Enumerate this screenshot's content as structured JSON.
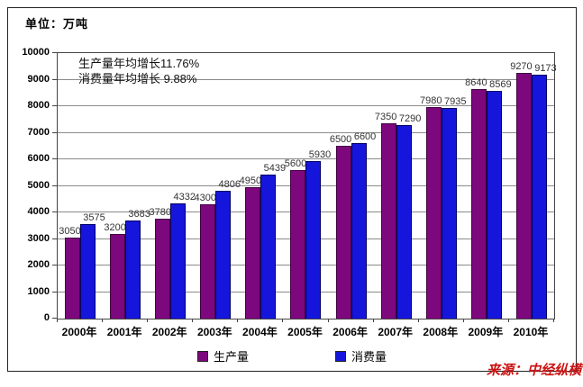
{
  "page": {
    "unit_label": "单位：万吨",
    "source_label": "来源：中经纵横",
    "source_color": "#cc1414"
  },
  "annotation": {
    "line1": "生产量年均增长11.76%",
    "line2": "消费量年均增长 9.88%"
  },
  "chart_data": {
    "type": "bar",
    "title": "",
    "unit": "万吨",
    "categories": [
      "2000年",
      "2001年",
      "2002年",
      "2003年",
      "2004年",
      "2005年",
      "2006年",
      "2007年",
      "2008年",
      "2009年",
      "2010年"
    ],
    "series": [
      {
        "name": "生产量",
        "color": "#7d077d",
        "border_color": "#3f003f",
        "values": [
          3050,
          3200,
          3780,
          4300,
          4950,
          5600,
          6500,
          7350,
          7980,
          8640,
          9270
        ]
      },
      {
        "name": "消费量",
        "color": "#1515dc",
        "border_color": "#000060",
        "values": [
          3575,
          3683,
          4332,
          4806,
          5439,
          5930,
          6600,
          7290,
          7935,
          8569,
          9173
        ]
      }
    ],
    "ylim": [
      0,
      10000
    ],
    "ytick_step": 1000,
    "yticks": [
      0,
      1000,
      2000,
      3000,
      4000,
      5000,
      6000,
      7000,
      8000,
      9000,
      10000
    ],
    "grid": true,
    "data_labels": true,
    "legend_position": "bottom"
  }
}
